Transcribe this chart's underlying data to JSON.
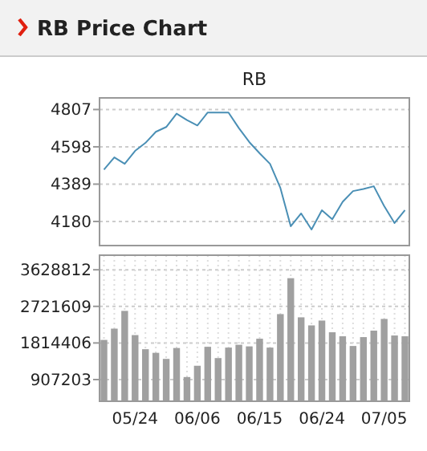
{
  "chart_data": [
    {
      "type": "line",
      "title": "RB Price Chart",
      "subtitle": "RB",
      "categories": [
        null,
        null,
        null,
        null,
        null,
        null,
        null,
        null,
        null,
        null,
        null,
        null,
        null,
        null,
        null,
        null,
        null,
        null,
        null,
        null,
        null,
        null,
        null,
        null,
        null,
        null,
        null,
        null,
        null,
        null
      ],
      "series": [
        {
          "color": "#4a8fb5",
          "values": [
            4470,
            4539,
            4503,
            4575,
            4620,
            4682,
            4709,
            4784,
            4748,
            4718,
            4790,
            4790,
            4790,
            4703,
            4625,
            4562,
            4503,
            4368,
            4153,
            4225,
            4135,
            4243,
            4192,
            4290,
            4350,
            4362,
            4377,
            4266,
            4171,
            4243
          ]
        }
      ],
      "ylim": [
        4045,
        4872
      ],
      "yticks": [
        4180,
        4389,
        4598,
        4807
      ],
      "grid": "y",
      "tick_labels": "y",
      "marker": "none"
    },
    {
      "type": "bar",
      "categories": [
        null,
        null,
        null,
        "05/24",
        null,
        null,
        null,
        null,
        null,
        "06/06",
        null,
        null,
        null,
        null,
        null,
        "06/15",
        null,
        null,
        null,
        null,
        null,
        "06/24",
        null,
        null,
        null,
        null,
        null,
        "07/05",
        null,
        null
      ],
      "series": [
        {
          "color": "#a0a0a0",
          "values": [
            1890000,
            2170000,
            2610000,
            2010000,
            1660000,
            1570000,
            1420000,
            1690000,
            970000,
            1250000,
            1720000,
            1440000,
            1700000,
            1770000,
            1730000,
            1920000,
            1700000,
            2530000,
            3420000,
            2450000,
            2250000,
            2370000,
            2080000,
            1980000,
            1740000,
            1960000,
            2120000,
            2410000,
            2000000,
            1980000
          ]
        }
      ],
      "ylim": [
        370000,
        3990000
      ],
      "yticks": [
        907203,
        1814406,
        2721609,
        3628812
      ],
      "grid": true
    }
  ]
}
